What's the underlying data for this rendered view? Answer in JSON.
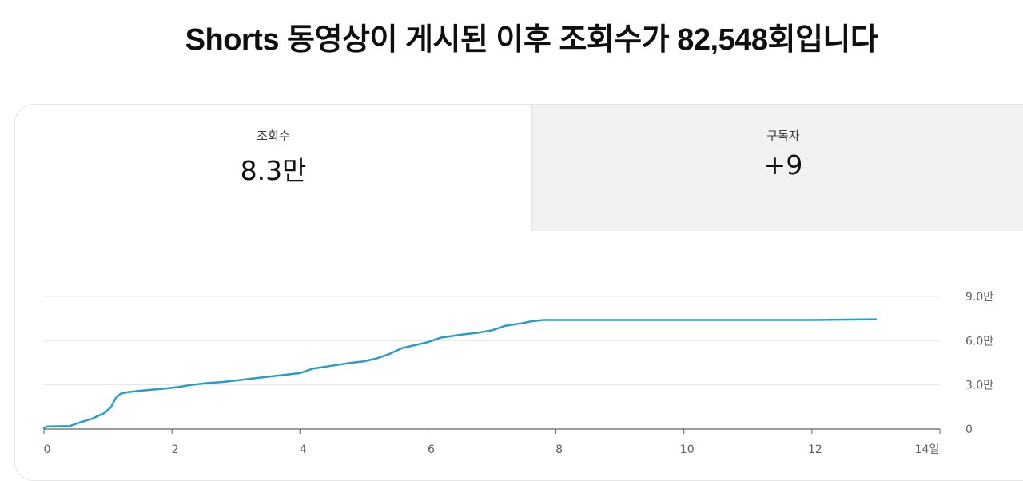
{
  "header": {
    "title": "Shorts 동영상이 게시된 이후 조회수가 82,548회입니다"
  },
  "tabs": [
    {
      "label": "조회수",
      "value": "8.3만",
      "selected": true
    },
    {
      "label": "구독자",
      "value": "+9",
      "selected": false
    }
  ],
  "colors": {
    "line": "#2b9cc8",
    "grid": "#e5e5e5",
    "axis": "#606060",
    "selected_tab_bg": "#ffffff",
    "unselected_tab_bg": "#f2f2f2"
  },
  "chart_data": {
    "type": "line",
    "title": "",
    "xlabel": "",
    "ylabel": "",
    "xlim": [
      0,
      14
    ],
    "ylim": [
      0,
      90000
    ],
    "grid": true,
    "x_ticks": [
      {
        "value": 0,
        "label": "0"
      },
      {
        "value": 2,
        "label": "2"
      },
      {
        "value": 4,
        "label": "4"
      },
      {
        "value": 6,
        "label": "6"
      },
      {
        "value": 8,
        "label": "8"
      },
      {
        "value": 10,
        "label": "10"
      },
      {
        "value": 12,
        "label": "12"
      },
      {
        "value": 14,
        "label": "14일"
      }
    ],
    "y_ticks": [
      {
        "value": 0,
        "label": "0"
      },
      {
        "value": 30000,
        "label": "3.0만"
      },
      {
        "value": 60000,
        "label": "6.0만"
      },
      {
        "value": 90000,
        "label": "9.0만"
      }
    ],
    "series": [
      {
        "x": [
          0,
          0.05,
          0.4,
          0.5,
          0.6,
          0.75,
          0.85,
          0.95,
          1.05,
          1.12,
          1.2,
          1.3,
          1.5,
          1.7,
          1.9,
          2.1,
          2.3,
          2.5,
          2.8,
          3.1,
          3.4,
          3.8,
          4.0,
          4.2,
          4.5,
          4.8,
          5.0,
          5.2,
          5.4,
          5.6,
          5.8,
          6.0,
          6.2,
          6.5,
          6.8,
          7.0,
          7.2,
          7.5,
          7.6,
          7.8,
          8.0,
          12.0,
          13.0
        ],
        "values": [
          500,
          1800,
          2000,
          3500,
          5000,
          7000,
          9000,
          11000,
          15000,
          21000,
          24000,
          25000,
          26000,
          26800,
          27500,
          28500,
          30000,
          31000,
          32000,
          33500,
          35000,
          37000,
          38000,
          41000,
          43000,
          45000,
          46000,
          48000,
          51000,
          55000,
          57000,
          59000,
          62000,
          64000,
          65500,
          67000,
          70000,
          72000,
          73000,
          74000,
          74000,
          74000,
          74500
        ]
      }
    ]
  }
}
